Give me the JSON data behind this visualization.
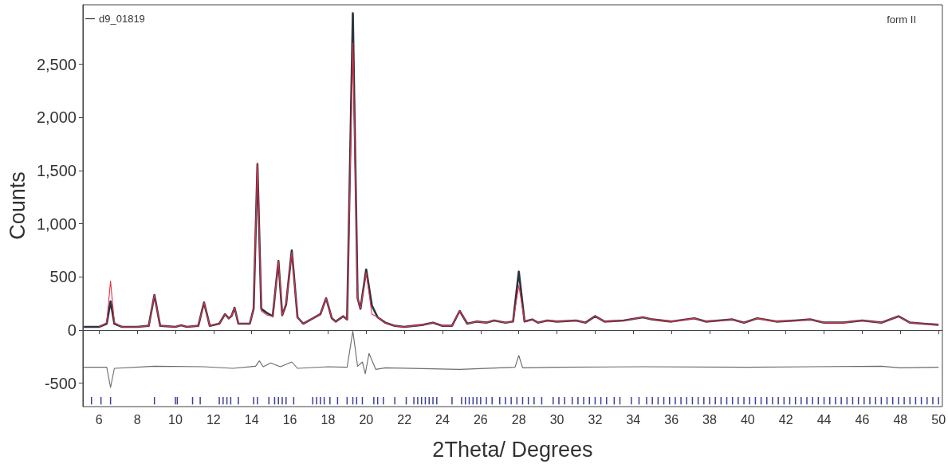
{
  "chart_data": {
    "type": "line",
    "xlabel": "2Theta/ Degrees",
    "ylabel": "Counts",
    "annotations": [
      "form II"
    ],
    "legend": "top left",
    "xlim": [
      5.15,
      50.2
    ],
    "xticks": [
      6,
      8,
      10,
      12,
      14,
      16,
      18,
      20,
      22,
      24,
      26,
      28,
      30,
      32,
      34,
      36,
      38,
      40,
      42,
      44,
      46,
      48,
      50
    ],
    "ylim": [
      -720,
      3060
    ],
    "yticks": [
      {
        "value": -500,
        "label": "-500"
      },
      0,
      500,
      {
        "value": 1000,
        "label": "1,000"
      },
      {
        "value": 1500,
        "label": "1,500"
      },
      {
        "value": 2000,
        "label": "2,000"
      },
      {
        "value": 2500,
        "label": "2,500"
      }
    ],
    "x": [
      5.2,
      6.0,
      6.4,
      6.6,
      6.8,
      7.2,
      8.0,
      8.6,
      8.9,
      9.2,
      10.0,
      10.3,
      10.6,
      11.2,
      11.5,
      11.8,
      12.3,
      12.6,
      12.8,
      12.95,
      13.1,
      13.3,
      13.9,
      14.1,
      14.3,
      14.5,
      14.8,
      15.1,
      15.4,
      15.6,
      15.8,
      16.1,
      16.4,
      16.7,
      17.2,
      17.6,
      17.9,
      18.2,
      18.4,
      18.8,
      19.0,
      19.3,
      19.55,
      19.7,
      20.0,
      20.3,
      20.6,
      21.0,
      21.5,
      22.0,
      23.0,
      23.5,
      24.0,
      24.5,
      24.9,
      25.3,
      25.8,
      26.3,
      26.7,
      27.3,
      27.7,
      28.0,
      28.3,
      28.7,
      29.0,
      29.5,
      30.0,
      31.0,
      31.5,
      32.0,
      32.5,
      33.5,
      34.5,
      35.0,
      36.0,
      37.2,
      37.8,
      38.5,
      39.2,
      39.8,
      40.5,
      41.5,
      42.5,
      43.3,
      44.0,
      45.0,
      46.0,
      47.0,
      47.9,
      48.5,
      49.2,
      50.0
    ],
    "series": [
      {
        "name": "d9_01819",
        "color": "#2b3340",
        "values": [
          30,
          30,
          60,
          270,
          60,
          30,
          30,
          40,
          330,
          40,
          30,
          45,
          30,
          40,
          260,
          40,
          60,
          150,
          110,
          135,
          210,
          60,
          60,
          200,
          1560,
          200,
          160,
          130,
          650,
          140,
          240,
          750,
          120,
          60,
          110,
          150,
          300,
          110,
          80,
          130,
          100,
          2980,
          300,
          200,
          570,
          230,
          120,
          70,
          40,
          30,
          50,
          70,
          40,
          40,
          180,
          60,
          80,
          70,
          90,
          70,
          80,
          550,
          80,
          100,
          70,
          90,
          80,
          90,
          70,
          130,
          80,
          90,
          120,
          100,
          80,
          110,
          80,
          90,
          100,
          70,
          110,
          80,
          90,
          100,
          70,
          70,
          90,
          70,
          130,
          70,
          60,
          50
        ]
      },
      {
        "color": "#e8304a",
        "values": [
          null,
          30,
          70,
          460,
          70,
          30,
          30,
          40,
          330,
          40,
          30,
          45,
          30,
          40,
          260,
          40,
          60,
          150,
          110,
          135,
          210,
          60,
          60,
          200,
          1575,
          180,
          140,
          130,
          650,
          140,
          250,
          730,
          120,
          60,
          110,
          150,
          300,
          110,
          80,
          130,
          100,
          2700,
          300,
          200,
          540,
          150,
          120,
          70,
          40,
          30,
          50,
          70,
          40,
          40,
          180,
          60,
          80,
          70,
          90,
          70,
          80,
          420,
          80,
          100,
          70,
          90,
          80,
          90,
          70,
          130,
          80,
          90,
          120,
          100,
          80,
          110,
          80,
          90,
          100,
          70,
          110,
          80,
          90,
          100,
          70,
          70,
          90,
          70,
          130,
          70,
          60,
          50
        ]
      },
      {
        "color": "#6a6a6a",
        "x": [
          5.2,
          6.4,
          6.6,
          6.8,
          8.9,
          11.5,
          13.0,
          14.2,
          14.4,
          14.6,
          15.0,
          15.5,
          16.1,
          16.4,
          18.0,
          19.0,
          19.3,
          19.55,
          19.8,
          19.95,
          20.15,
          20.5,
          21.0,
          24.9,
          27.8,
          28.0,
          28.2,
          30.0,
          34.5,
          40.0,
          47.0,
          48.0,
          50.0
        ],
        "values": [
          -350,
          -350,
          -540,
          -360,
          -340,
          -345,
          -360,
          -340,
          -290,
          -345,
          -310,
          -345,
          -300,
          -360,
          -345,
          -350,
          -10,
          -340,
          -300,
          -410,
          -220,
          -370,
          -355,
          -370,
          -350,
          -240,
          -355,
          -350,
          -345,
          -350,
          -340,
          -355,
          -350
        ]
      },
      {
        "type": "bar",
        "color": "#3a3f9a",
        "x": [
          5.6,
          6.1,
          6.6,
          8.9,
          10.0,
          10.1,
          10.9,
          11.3,
          12.3,
          12.5,
          12.7,
          12.9,
          13.3,
          14.1,
          14.3,
          14.9,
          15.2,
          15.4,
          15.6,
          15.8,
          16.2,
          17.2,
          17.4,
          17.6,
          17.8,
          18.1,
          18.5,
          19.0,
          19.3,
          19.5,
          19.8,
          20.4,
          20.6,
          20.9,
          21.5,
          22.1,
          22.5,
          22.7,
          22.9,
          23.1,
          23.3,
          23.5,
          23.7,
          24.5,
          25.0,
          25.2,
          25.4,
          25.6,
          25.8,
          26.0,
          26.3,
          26.6,
          27.0,
          27.3,
          27.6,
          27.9,
          28.2,
          28.5,
          28.8,
          29.2,
          29.8,
          30.1,
          30.4,
          30.8,
          31.1,
          31.4,
          31.7,
          32.0,
          32.3,
          32.6,
          33.0,
          33.3,
          33.9,
          34.3,
          34.7,
          35.0,
          35.3,
          35.6,
          35.9,
          36.2,
          36.5,
          36.8,
          37.1,
          37.4,
          37.7,
          38.0,
          38.3,
          38.6,
          38.9,
          39.2,
          39.5,
          39.8,
          40.1,
          40.4,
          40.7,
          41.0,
          41.3,
          41.6,
          41.9,
          42.2,
          42.5,
          42.8,
          43.1,
          43.4,
          43.7,
          44.0,
          44.3,
          44.6,
          44.9,
          45.2,
          45.5,
          45.8,
          46.1,
          46.4,
          46.7,
          47.0,
          47.3,
          47.6,
          47.9,
          48.2,
          48.5,
          48.8,
          49.1,
          49.4,
          49.7,
          50.0
        ],
        "values": [
          70,
          70,
          70,
          70,
          70,
          70,
          70,
          70,
          70,
          70,
          70,
          70,
          70,
          70,
          70,
          70,
          70,
          70,
          70,
          70,
          70,
          70,
          70,
          70,
          70,
          70,
          70,
          70,
          70,
          70,
          70,
          70,
          70,
          70,
          70,
          70,
          70,
          70,
          70,
          70,
          70,
          70,
          70,
          70,
          70,
          70,
          70,
          70,
          70,
          70,
          70,
          70,
          70,
          70,
          70,
          70,
          70,
          70,
          70,
          70,
          70,
          70,
          70,
          70,
          70,
          70,
          70,
          70,
          70,
          70,
          70,
          70,
          70,
          70,
          70,
          70,
          70,
          70,
          70,
          70,
          70,
          70,
          70,
          70,
          70,
          70,
          70,
          70,
          70,
          70,
          70,
          70,
          70,
          70,
          70,
          70,
          70,
          70,
          70,
          70,
          70,
          70,
          70,
          70,
          70,
          70,
          70,
          70,
          70,
          70,
          70,
          70,
          70,
          70,
          70,
          70,
          70,
          70,
          70,
          70,
          70,
          70,
          70,
          70,
          70,
          70
        ],
        "base": [
          -700,
          -700,
          -700,
          -700,
          -700,
          -700,
          -700,
          -700,
          -700,
          -700,
          -700,
          -700,
          -700,
          -700,
          -700,
          -700,
          -700,
          -700,
          -700,
          -700,
          -700,
          -700,
          -700,
          -700,
          -700,
          -700,
          -700,
          -700,
          -700,
          -700,
          -700,
          -700,
          -700,
          -700,
          -700,
          -700,
          -700,
          -700,
          -700,
          -700,
          -700,
          -700,
          -700,
          -700,
          -700,
          -700,
          -700,
          -700,
          -700,
          -700,
          -700,
          -700,
          -700,
          -700,
          -700,
          -700,
          -700,
          -700,
          -700,
          -700,
          -700,
          -700,
          -700,
          -700,
          -700,
          -700,
          -700,
          -700,
          -700,
          -700,
          -700,
          -700,
          -700,
          -700,
          -700,
          -700,
          -700,
          -700,
          -700,
          -700,
          -700,
          -700,
          -700,
          -700,
          -700,
          -700,
          -700,
          -700,
          -700,
          -700,
          -700,
          -700,
          -700,
          -700,
          -700,
          -700,
          -700,
          -700,
          -700,
          -700,
          -700,
          -700,
          -700,
          -700,
          -700,
          -700,
          -700,
          -700,
          -700,
          -700,
          -700,
          -700,
          -700,
          -700,
          -700,
          -700,
          -700,
          -700,
          -700,
          -700,
          -700,
          -700,
          -700,
          -700,
          -700,
          -700
        ]
      }
    ]
  }
}
